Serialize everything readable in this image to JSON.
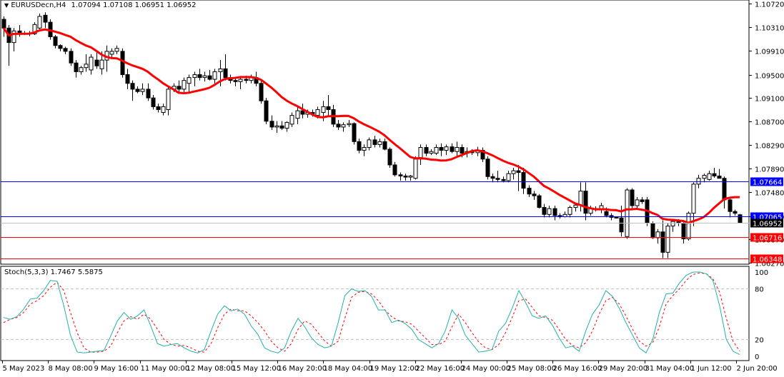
{
  "chart_data": {
    "type": "candlestick",
    "title": "EURUSDecn,H4",
    "symbol": "EURUSDecn",
    "timeframe": "H4",
    "ohlc_header": {
      "open": "1.07094",
      "high": "1.07108",
      "low": "1.06951",
      "close": "1.06952"
    },
    "price_axis": {
      "ticks": [
        "1.10720",
        "1.10310",
        "1.09910",
        "1.09500",
        "1.09100",
        "1.08700",
        "1.08290",
        "1.07890",
        "1.07480",
        "1.07070",
        "1.06670",
        "1.06270"
      ],
      "range": [
        1.0627,
        1.1072
      ]
    },
    "time_axis": {
      "ticks": [
        "5 May 2023",
        "8 May 08:00",
        "9 May 16:00",
        "11 May 00:00",
        "12 May 08:00",
        "15 May 12:00",
        "16 May 20:00",
        "18 May 04:00",
        "19 May 12:00",
        "22 May 16:00",
        "24 May 00:00",
        "25 May 08:00",
        "26 May 16:00",
        "29 May 20:00",
        "31 May 04:00",
        "1 Jun 12:00",
        "2 Jun 20:00"
      ]
    },
    "horizontal_lines": [
      {
        "price": "1.07664",
        "color": "#0000ff",
        "label_bg": "#0000ff"
      },
      {
        "price": "1.07065",
        "color": "#0000ff",
        "label_bg": "#0000ff"
      },
      {
        "price": "1.06952",
        "color": "#c0c0c0",
        "label_bg": "#000000",
        "note": "current bid"
      },
      {
        "price": "1.06716",
        "color": "#ff0000",
        "label_bg": "#ff0000"
      },
      {
        "price": "1.06348",
        "color": "#ff0000",
        "label_bg": "#ff0000"
      }
    ],
    "moving_average": {
      "color": "#ff0000",
      "width": 3
    },
    "candles_approx": [
      [
        1.1045,
        1.105,
        1.1015,
        1.103
      ],
      [
        1.103,
        1.1035,
        1.0965,
        1.1005
      ],
      [
        1.1005,
        1.103,
        1.099,
        1.1025
      ],
      [
        1.1025,
        1.1035,
        1.1015,
        1.102
      ],
      [
        1.102,
        1.1025,
        1.1018,
        1.1021
      ],
      [
        1.1021,
        1.1025,
        1.1016,
        1.102
      ],
      [
        1.102,
        1.104,
        1.1018,
        1.1036
      ],
      [
        1.103,
        1.1055,
        1.1028,
        1.105
      ],
      [
        1.1052,
        1.1057,
        1.103,
        1.104
      ],
      [
        1.104,
        1.1045,
        1.101,
        1.1015
      ],
      [
        1.1015,
        1.1018,
        1.0995,
        1.1
      ],
      [
        1.1,
        1.1002,
        1.099,
        1.0995
      ],
      [
        1.0995,
        1.0998,
        1.0985,
        1.099
      ],
      [
        1.099,
        1.0995,
        1.0965,
        1.097
      ],
      [
        1.097,
        1.0975,
        1.0945,
        1.0955
      ],
      [
        1.0955,
        1.0965,
        1.095,
        1.0962
      ],
      [
        1.0962,
        1.0985,
        1.0955,
        1.0968
      ],
      [
        1.0958,
        1.0985,
        1.095,
        1.098
      ],
      [
        1.0975,
        1.099,
        1.096,
        1.0965
      ],
      [
        1.096,
        1.099,
        1.095,
        1.0975
      ],
      [
        1.0975,
        1.1,
        1.0955,
        1.099
      ],
      [
        1.0985,
        1.0995,
        1.098,
        1.099
      ],
      [
        1.099,
        1.1,
        1.0985,
        1.0995
      ],
      [
        1.099,
        1.0995,
        1.0945,
        1.095
      ],
      [
        1.095,
        1.096,
        1.0925,
        1.0935
      ],
      [
        1.0935,
        1.094,
        1.0905,
        1.0925
      ],
      [
        1.0925,
        1.093,
        1.0918,
        1.0921
      ],
      [
        1.0921,
        1.0935,
        1.0915,
        1.0925
      ],
      [
        1.0925,
        1.0935,
        1.0905,
        1.091
      ],
      [
        1.091,
        1.0915,
        1.089,
        1.0895
      ],
      [
        1.0895,
        1.09,
        1.0885,
        1.089
      ],
      [
        1.0885,
        1.09,
        1.088,
        1.0895
      ],
      [
        1.089,
        1.093,
        1.088,
        1.0925
      ],
      [
        1.0925,
        1.0935,
        1.092,
        1.093
      ],
      [
        1.093,
        1.094,
        1.0918,
        1.0925
      ],
      [
        1.0925,
        1.0945,
        1.092,
        1.094
      ],
      [
        1.0935,
        1.095,
        1.092,
        1.0945
      ],
      [
        1.0945,
        1.0955,
        1.093,
        1.095
      ],
      [
        1.095,
        1.096,
        1.094,
        1.0945
      ],
      [
        1.0945,
        1.0955,
        1.0938,
        1.0948
      ],
      [
        1.0948,
        1.0958,
        1.094,
        1.0942
      ],
      [
        1.0942,
        1.096,
        1.0935,
        1.0955
      ],
      [
        1.0955,
        1.0975,
        1.093,
        1.096
      ],
      [
        1.096,
        1.0985,
        1.094,
        1.0945
      ],
      [
        1.0945,
        1.095,
        1.0935,
        1.094
      ],
      [
        1.094,
        1.0945,
        1.093,
        1.0938
      ],
      [
        1.0938,
        1.0945,
        1.0925,
        1.0942
      ],
      [
        1.0942,
        1.0948,
        1.0935,
        1.094
      ],
      [
        1.094,
        1.095,
        1.0935,
        1.0945
      ],
      [
        1.0945,
        1.0955,
        1.093,
        1.0935
      ],
      [
        1.0935,
        1.094,
        1.09,
        1.0905
      ],
      [
        1.0905,
        1.091,
        1.0865,
        1.087
      ],
      [
        1.087,
        1.088,
        1.0855,
        1.086
      ],
      [
        1.086,
        1.087,
        1.085,
        1.0862
      ],
      [
        1.0862,
        1.087,
        1.0855,
        1.0858
      ],
      [
        1.0858,
        1.087,
        1.0852,
        1.0868
      ],
      [
        1.0865,
        1.0885,
        1.086,
        1.088
      ],
      [
        1.0875,
        1.0895,
        1.0865,
        1.0888
      ],
      [
        1.0888,
        1.09,
        1.0875,
        1.0882
      ],
      [
        1.0882,
        1.089,
        1.0876,
        1.0885
      ],
      [
        1.0885,
        1.089,
        1.0878,
        1.0883
      ],
      [
        1.088,
        1.0895,
        1.0875,
        1.089
      ],
      [
        1.0885,
        1.0905,
        1.087,
        1.0895
      ],
      [
        1.0895,
        1.0915,
        1.088,
        1.089
      ],
      [
        1.089,
        1.0898,
        1.086,
        1.0865
      ],
      [
        1.0865,
        1.0872,
        1.0855,
        1.086
      ],
      [
        1.086,
        1.0868,
        1.0852,
        1.0864
      ],
      [
        1.0864,
        1.0872,
        1.086,
        1.0866
      ],
      [
        1.0866,
        1.0868,
        1.083,
        1.0835
      ],
      [
        1.0835,
        1.084,
        1.0815,
        1.082
      ],
      [
        1.082,
        1.083,
        1.081,
        1.0825
      ],
      [
        1.0825,
        1.0842,
        1.082,
        1.0838
      ],
      [
        1.0838,
        1.0845,
        1.0825,
        1.083
      ],
      [
        1.083,
        1.084,
        1.0825,
        1.0835
      ],
      [
        1.0835,
        1.084,
        1.082,
        1.0822
      ],
      [
        1.0822,
        1.0825,
        1.079,
        1.0795
      ],
      [
        1.0795,
        1.08,
        1.0775,
        1.0778
      ],
      [
        1.0778,
        1.0782,
        1.0768,
        1.0776
      ],
      [
        1.0776,
        1.078,
        1.0768,
        1.0774
      ],
      [
        1.0774,
        1.0778,
        1.0768,
        1.0776
      ],
      [
        1.0772,
        1.081,
        1.077,
        1.0805
      ],
      [
        1.0805,
        1.083,
        1.0795,
        1.0825
      ],
      [
        1.0825,
        1.083,
        1.081,
        1.0815
      ],
      [
        1.0815,
        1.0822,
        1.0812,
        1.0818
      ],
      [
        1.0815,
        1.083,
        1.0812,
        1.0825
      ],
      [
        1.0825,
        1.0832,
        1.081,
        1.082
      ],
      [
        1.082,
        1.083,
        1.0812,
        1.0826
      ],
      [
        1.0826,
        1.0832,
        1.0815,
        1.0818
      ],
      [
        1.0818,
        1.0835,
        1.081,
        1.0825
      ],
      [
        1.0825,
        1.083,
        1.0808,
        1.0815
      ],
      [
        1.0815,
        1.0825,
        1.0808,
        1.0818
      ],
      [
        1.0818,
        1.0822,
        1.0812,
        1.0816
      ],
      [
        1.0816,
        1.0826,
        1.081,
        1.082
      ],
      [
        1.082,
        1.0825,
        1.08,
        1.0805
      ],
      [
        1.0805,
        1.081,
        1.077,
        1.0775
      ],
      [
        1.0775,
        1.078,
        1.0765,
        1.0772
      ],
      [
        1.0772,
        1.0785,
        1.0765,
        1.077
      ],
      [
        1.077,
        1.0775,
        1.0765,
        1.0768
      ],
      [
        1.0768,
        1.0785,
        1.0765,
        1.078
      ],
      [
        1.078,
        1.079,
        1.077,
        1.0785
      ],
      [
        1.0785,
        1.0795,
        1.075,
        1.0782
      ],
      [
        1.0782,
        1.079,
        1.0745,
        1.0755
      ],
      [
        1.0755,
        1.076,
        1.074,
        1.0745
      ],
      [
        1.0745,
        1.075,
        1.0735,
        1.0742
      ],
      [
        1.0742,
        1.0745,
        1.072,
        1.0722
      ],
      [
        1.0722,
        1.0728,
        1.0705,
        1.071
      ],
      [
        1.071,
        1.0725,
        1.0705,
        1.072
      ],
      [
        1.072,
        1.0725,
        1.07,
        1.0708
      ],
      [
        1.0708,
        1.0712,
        1.0703,
        1.0706
      ],
      [
        1.0706,
        1.0715,
        1.0705,
        1.071
      ],
      [
        1.071,
        1.0725,
        1.0705,
        1.0722
      ],
      [
        1.0722,
        1.073,
        1.0715,
        1.0726
      ],
      [
        1.0726,
        1.0765,
        1.0715,
        1.075
      ],
      [
        1.075,
        1.0765,
        1.07,
        1.0712
      ],
      [
        1.0712,
        1.0725,
        1.0708,
        1.072
      ],
      [
        1.072,
        1.0724,
        1.0715,
        1.0719
      ],
      [
        1.0719,
        1.073,
        1.0712,
        1.0725
      ],
      [
        1.0715,
        1.0722,
        1.0705,
        1.0708
      ],
      [
        1.0708,
        1.0712,
        1.07,
        1.0705
      ],
      [
        1.0705,
        1.0706,
        1.0703,
        1.0704
      ],
      [
        1.0704,
        1.0725,
        1.0672,
        1.068
      ],
      [
        1.0672,
        1.0755,
        1.0668,
        1.0752
      ],
      [
        1.0752,
        1.0755,
        1.0718,
        1.0725
      ],
      [
        1.0725,
        1.074,
        1.072,
        1.0735
      ],
      [
        1.0735,
        1.074,
        1.0728,
        1.0732
      ],
      [
        1.0735,
        1.074,
        1.069,
        1.0695
      ],
      [
        1.0695,
        1.0698,
        1.0668,
        1.067
      ],
      [
        1.067,
        1.0685,
        1.066,
        1.068
      ],
      [
        1.068,
        1.07,
        1.0635,
        1.0645
      ],
      [
        1.0645,
        1.0695,
        1.0635,
        1.069
      ],
      [
        1.069,
        1.07,
        1.068,
        1.0698
      ],
      [
        1.0698,
        1.0702,
        1.069,
        1.0695
      ],
      [
        1.0695,
        1.07,
        1.066,
        1.0668
      ],
      [
        1.0668,
        1.0715,
        1.0665,
        1.0712
      ],
      [
        1.0712,
        1.0765,
        1.069,
        1.0762
      ],
      [
        1.0762,
        1.0778,
        1.0755,
        1.0772
      ],
      [
        1.0772,
        1.078,
        1.0765,
        1.0777
      ],
      [
        1.077,
        1.0785,
        1.0768,
        1.078
      ],
      [
        1.078,
        1.079,
        1.0773,
        1.0776
      ],
      [
        1.0776,
        1.0788,
        1.0772,
        1.0772
      ],
      [
        1.0772,
        1.0775,
        1.072,
        1.0735
      ],
      [
        1.0735,
        1.074,
        1.0705,
        1.0715
      ],
      [
        1.0715,
        1.0718,
        1.0708,
        1.0712
      ],
      [
        1.07094,
        1.07108,
        1.06951,
        1.06952
      ]
    ],
    "stochastic": {
      "label": "Stoch(5,3,3)",
      "main_value": "1.7467",
      "signal_value": "5.5875",
      "levels": [
        80,
        20
      ],
      "axis_ticks": [
        "100",
        "80",
        "20",
        "0"
      ],
      "main_color": "#20b2aa",
      "signal_color": "#ff0000",
      "main": [
        46,
        44,
        47,
        56,
        68,
        69,
        78,
        90,
        89,
        60,
        25,
        5,
        4,
        5,
        6,
        7,
        24,
        42,
        52,
        44,
        48,
        55,
        36,
        15,
        12,
        14,
        15,
        10,
        6,
        4,
        8,
        30,
        50,
        60,
        54,
        56,
        50,
        36,
        26,
        10,
        6,
        4,
        10,
        30,
        45,
        35,
        22,
        14,
        10,
        12,
        40,
        72,
        80,
        77,
        78,
        71,
        55,
        55,
        40,
        43,
        39,
        32,
        20,
        15,
        10,
        15,
        30,
        55,
        45,
        25,
        15,
        5,
        6,
        8,
        30,
        39,
        57,
        78,
        64,
        48,
        45,
        48,
        37,
        22,
        10,
        12,
        6,
        30,
        50,
        61,
        78,
        71,
        57,
        40,
        25,
        10,
        4,
        20,
        52,
        74,
        75,
        87,
        96,
        100,
        100,
        98,
        90,
        60,
        20,
        6,
        2
      ],
      "signal": [
        40,
        44,
        46,
        52,
        62,
        66,
        72,
        82,
        88,
        78,
        52,
        28,
        10,
        5,
        5,
        6,
        12,
        28,
        42,
        47,
        44,
        50,
        44,
        32,
        20,
        14,
        12,
        13,
        10,
        6,
        5,
        15,
        34,
        50,
        56,
        54,
        54,
        48,
        40,
        30,
        18,
        10,
        6,
        15,
        32,
        42,
        38,
        28,
        18,
        12,
        18,
        45,
        70,
        76,
        77,
        74,
        66,
        55,
        47,
        42,
        41,
        38,
        30,
        22,
        14,
        14,
        18,
        35,
        50,
        40,
        28,
        17,
        10,
        8,
        14,
        28,
        46,
        66,
        68,
        58,
        48,
        46,
        43,
        32,
        20,
        13,
        10,
        16,
        30,
        50,
        66,
        70,
        62,
        48,
        32,
        18,
        12,
        16,
        35,
        62,
        72,
        80,
        90,
        97,
        99,
        98,
        92,
        76,
        45,
        18,
        6
      ]
    }
  },
  "header": {
    "title": "EURUSDecn,H4",
    "values": "1.07094 1.07108 1.06951 1.06952"
  },
  "stoch_header": {
    "label": "Stoch(5,3,3) 1.7467 5.5875"
  }
}
